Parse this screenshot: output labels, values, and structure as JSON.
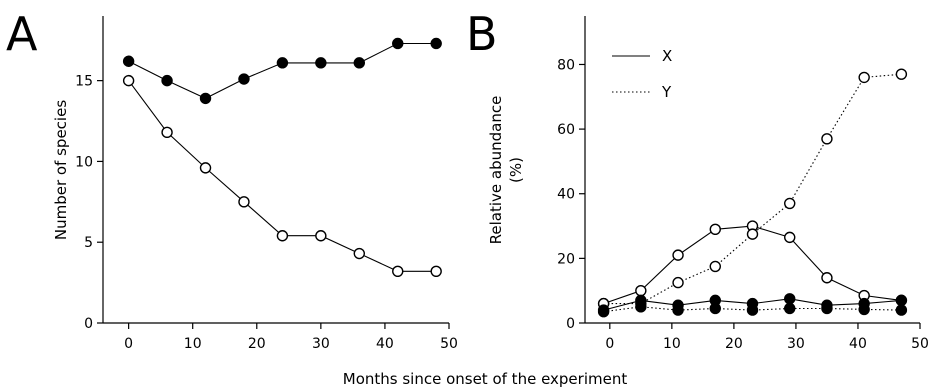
{
  "figure": {
    "xlabel": "Months since onset of the experiment"
  },
  "chart_data": [
    {
      "panel": "A",
      "type": "line",
      "title": "",
      "xlabel": "",
      "ylabel": "Number of species",
      "xlim": [
        -4,
        50
      ],
      "ylim": [
        0,
        19
      ],
      "xticks": [
        0,
        10,
        20,
        30,
        40,
        50
      ],
      "yticks": [
        0,
        5,
        10,
        15
      ],
      "series": [
        {
          "marker": "filled",
          "line": "solid",
          "x": [
            0,
            6,
            12,
            18,
            24,
            30,
            36,
            42,
            48
          ],
          "values": [
            16.2,
            15.0,
            13.9,
            15.1,
            16.1,
            16.1,
            16.1,
            17.3,
            17.3
          ]
        },
        {
          "marker": "open",
          "line": "solid",
          "x": [
            0,
            6,
            12,
            18,
            24,
            30,
            36,
            42,
            48
          ],
          "values": [
            15.0,
            11.8,
            9.6,
            7.5,
            5.4,
            5.4,
            4.3,
            3.2,
            3.2
          ]
        }
      ]
    },
    {
      "panel": "B",
      "type": "line",
      "title": "",
      "xlabel": "",
      "ylabel": "Relative abundance (%)",
      "ylabel_lines": [
        "Relative abundance",
        "(%)"
      ],
      "xlim": [
        -4,
        50
      ],
      "ylim": [
        0,
        95
      ],
      "xticks": [
        0,
        10,
        20,
        30,
        40,
        50
      ],
      "yticks": [
        0,
        20,
        40,
        60,
        80
      ],
      "legend": {
        "position": "top-left",
        "entries": [
          {
            "label": "X",
            "line": "solid"
          },
          {
            "label": "Y",
            "line": "dotted"
          }
        ]
      },
      "series": [
        {
          "name": "X",
          "marker": "open",
          "line": "solid",
          "x": [
            -1,
            5,
            11,
            17,
            23,
            29,
            35,
            41,
            47
          ],
          "values": [
            6,
            10,
            21,
            29,
            30,
            26.5,
            14,
            8.5,
            7
          ]
        },
        {
          "name": "Y",
          "marker": "open",
          "line": "dotted",
          "x": [
            -1,
            5,
            11,
            17,
            23,
            29,
            35,
            41,
            47
          ],
          "values": [
            6,
            6,
            12.5,
            17.5,
            27.5,
            37,
            57,
            76,
            77
          ]
        },
        {
          "name": "X",
          "marker": "filled",
          "line": "solid",
          "x": [
            -1,
            5,
            11,
            17,
            23,
            29,
            35,
            41,
            47
          ],
          "values": [
            4,
            7,
            5.5,
            7,
            6,
            7.5,
            5.5,
            6,
            7
          ]
        },
        {
          "name": "Y",
          "marker": "filled",
          "line": "dotted",
          "x": [
            -1,
            5,
            11,
            17,
            23,
            29,
            35,
            41,
            47
          ],
          "values": [
            3.5,
            5,
            4,
            4.5,
            4,
            4.5,
            4.5,
            4.2,
            4
          ]
        }
      ]
    }
  ]
}
